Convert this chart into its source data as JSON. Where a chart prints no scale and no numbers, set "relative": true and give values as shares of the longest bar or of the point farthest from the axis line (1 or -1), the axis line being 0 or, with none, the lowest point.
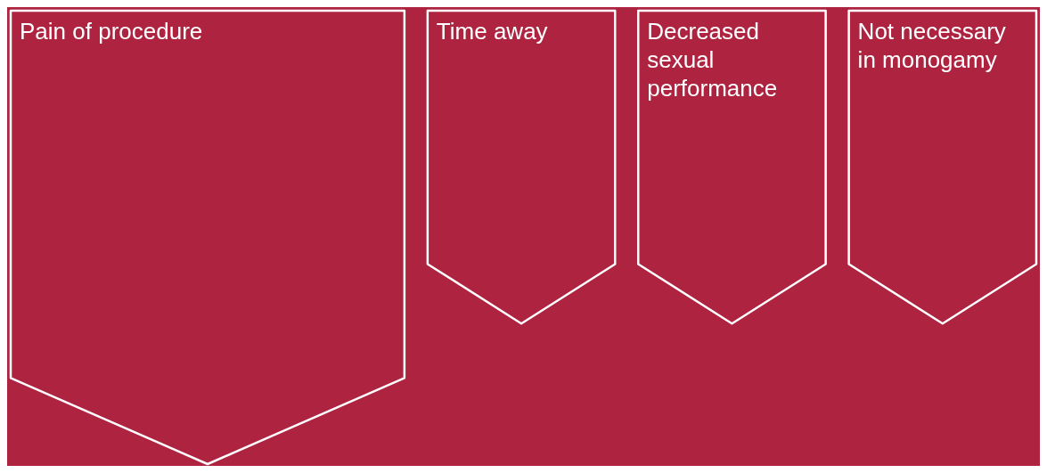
{
  "chart_data": {
    "type": "bar",
    "relative": true,
    "categories": [
      "Pain of procedure",
      "Time away",
      "Decreased sexual performance",
      "Not necessary in monogamy"
    ],
    "values": [
      -1,
      -0.69,
      -0.69,
      -0.69
    ],
    "color": "#ffffff"
  }
}
